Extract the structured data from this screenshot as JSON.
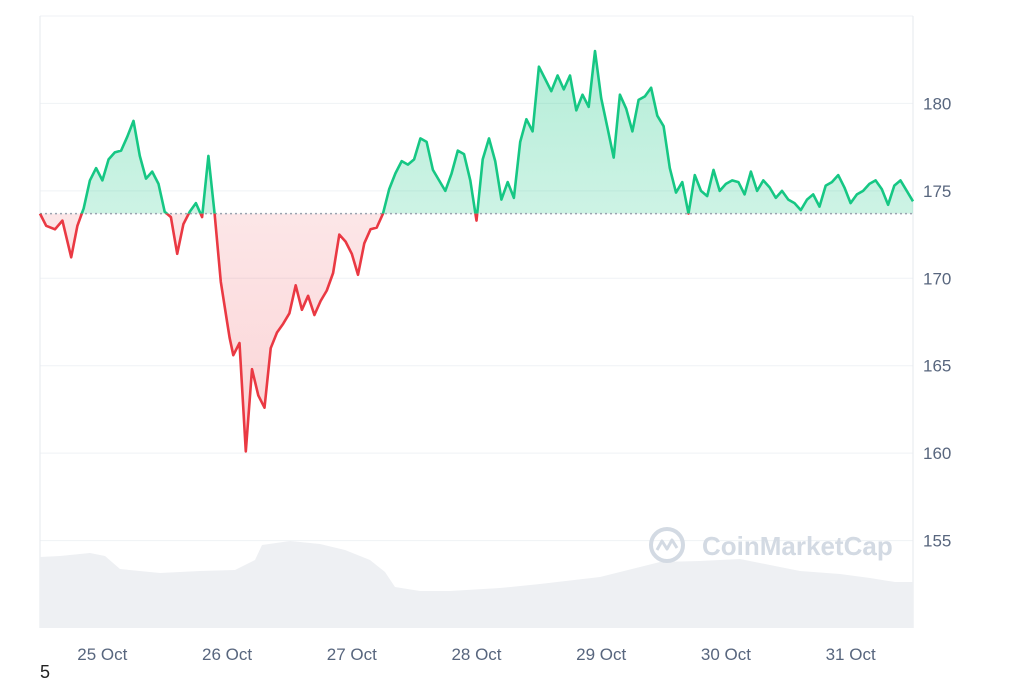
{
  "watermark": {
    "text": "CoinMarketCap"
  },
  "footnote": "5",
  "chart_data": {
    "type": "line",
    "title": "",
    "xlabel": "",
    "ylabel": "",
    "x_ticks": [
      "25 Oct",
      "26 Oct",
      "27 Oct",
      "28 Oct",
      "29 Oct",
      "30 Oct",
      "31 Oct"
    ],
    "x_range": [
      -0.5,
      6.5
    ],
    "y_ticks": [
      155,
      160,
      165,
      170,
      175,
      180
    ],
    "ylim": [
      150,
      185
    ],
    "y_axis_side": "right",
    "grid": true,
    "baseline": 173.7,
    "colors": {
      "above": "#16c784",
      "below": "#ea3943",
      "volume": "#eef0f3"
    },
    "series": [
      {
        "x": [
          -0.5,
          -0.45,
          -0.38,
          -0.32,
          -0.25,
          -0.2,
          -0.15,
          -0.1,
          -0.05,
          0.0,
          0.05,
          0.1,
          0.15,
          0.2,
          0.25,
          0.3,
          0.35,
          0.4,
          0.45,
          0.5,
          0.55,
          0.6,
          0.65,
          0.7,
          0.75,
          0.8,
          0.85,
          0.9,
          0.95,
          1.0,
          1.02,
          1.05,
          1.1,
          1.15,
          1.2,
          1.25,
          1.3,
          1.35,
          1.4,
          1.45,
          1.5,
          1.55,
          1.6,
          1.65,
          1.7,
          1.75,
          1.8,
          1.85,
          1.9,
          1.95,
          2.0,
          2.05,
          2.1,
          2.15,
          2.2,
          2.25,
          2.3,
          2.35,
          2.4,
          2.45,
          2.5,
          2.55,
          2.6,
          2.65,
          2.7,
          2.75,
          2.8,
          2.85,
          2.9,
          2.95,
          3.0,
          3.05,
          3.1,
          3.15,
          3.2,
          3.25,
          3.3,
          3.35,
          3.4,
          3.45,
          3.5,
          3.55,
          3.6,
          3.65,
          3.7,
          3.75,
          3.8,
          3.85,
          3.9,
          3.95,
          4.0,
          4.05,
          4.1,
          4.15,
          4.2,
          4.25,
          4.3,
          4.35,
          4.4,
          4.45,
          4.5,
          4.55,
          4.6,
          4.65,
          4.7,
          4.75,
          4.8,
          4.85,
          4.9,
          4.95,
          5.0,
          5.05,
          5.1,
          5.15,
          5.2,
          5.25,
          5.3,
          5.35,
          5.4,
          5.45,
          5.5,
          5.55,
          5.6,
          5.65,
          5.7,
          5.75,
          5.8,
          5.85,
          5.9,
          5.95,
          6.0,
          6.05,
          6.1,
          6.15,
          6.2,
          6.25,
          6.3,
          6.35,
          6.4,
          6.45,
          6.5
        ],
        "y": [
          173.7,
          173.0,
          172.8,
          173.3,
          171.2,
          173.0,
          174.0,
          175.6,
          176.3,
          175.6,
          176.8,
          177.2,
          177.3,
          178.1,
          179.0,
          177.0,
          175.7,
          176.1,
          175.4,
          173.8,
          173.5,
          171.4,
          173.1,
          173.8,
          174.3,
          173.5,
          177.0,
          173.7,
          169.8,
          167.5,
          166.6,
          165.6,
          166.3,
          160.1,
          164.8,
          163.3,
          162.6,
          166.0,
          166.9,
          167.4,
          168.0,
          169.6,
          168.2,
          169.0,
          167.9,
          168.7,
          169.3,
          170.3,
          172.5,
          172.1,
          171.4,
          170.2,
          172.0,
          172.8,
          172.9,
          173.7,
          175.1,
          176.0,
          176.7,
          176.5,
          176.8,
          178.0,
          177.8,
          176.2,
          175.6,
          175.0,
          176.0,
          177.3,
          177.1,
          175.6,
          173.3,
          176.8,
          178.0,
          176.7,
          174.5,
          175.5,
          174.6,
          177.8,
          179.1,
          178.4,
          182.1,
          181.4,
          180.7,
          181.6,
          180.8,
          181.6,
          179.6,
          180.5,
          179.8,
          183.0,
          180.3,
          178.6,
          176.9,
          180.5,
          179.7,
          178.4,
          180.2,
          180.4,
          180.9,
          179.3,
          178.7,
          176.3,
          174.9,
          175.5,
          173.7,
          175.9,
          175.0,
          174.7,
          176.2,
          175.0,
          175.4,
          175.6,
          175.5,
          174.8,
          176.1,
          175.0,
          175.6,
          175.2,
          174.6,
          175.0,
          174.5,
          174.3,
          173.9,
          174.5,
          174.8,
          174.1,
          175.3,
          175.5,
          175.9,
          175.2,
          174.3,
          174.8,
          175.0,
          175.4,
          175.6,
          175.1,
          174.2,
          175.3,
          175.6,
          175.0,
          174.4
        ]
      }
    ]
  }
}
